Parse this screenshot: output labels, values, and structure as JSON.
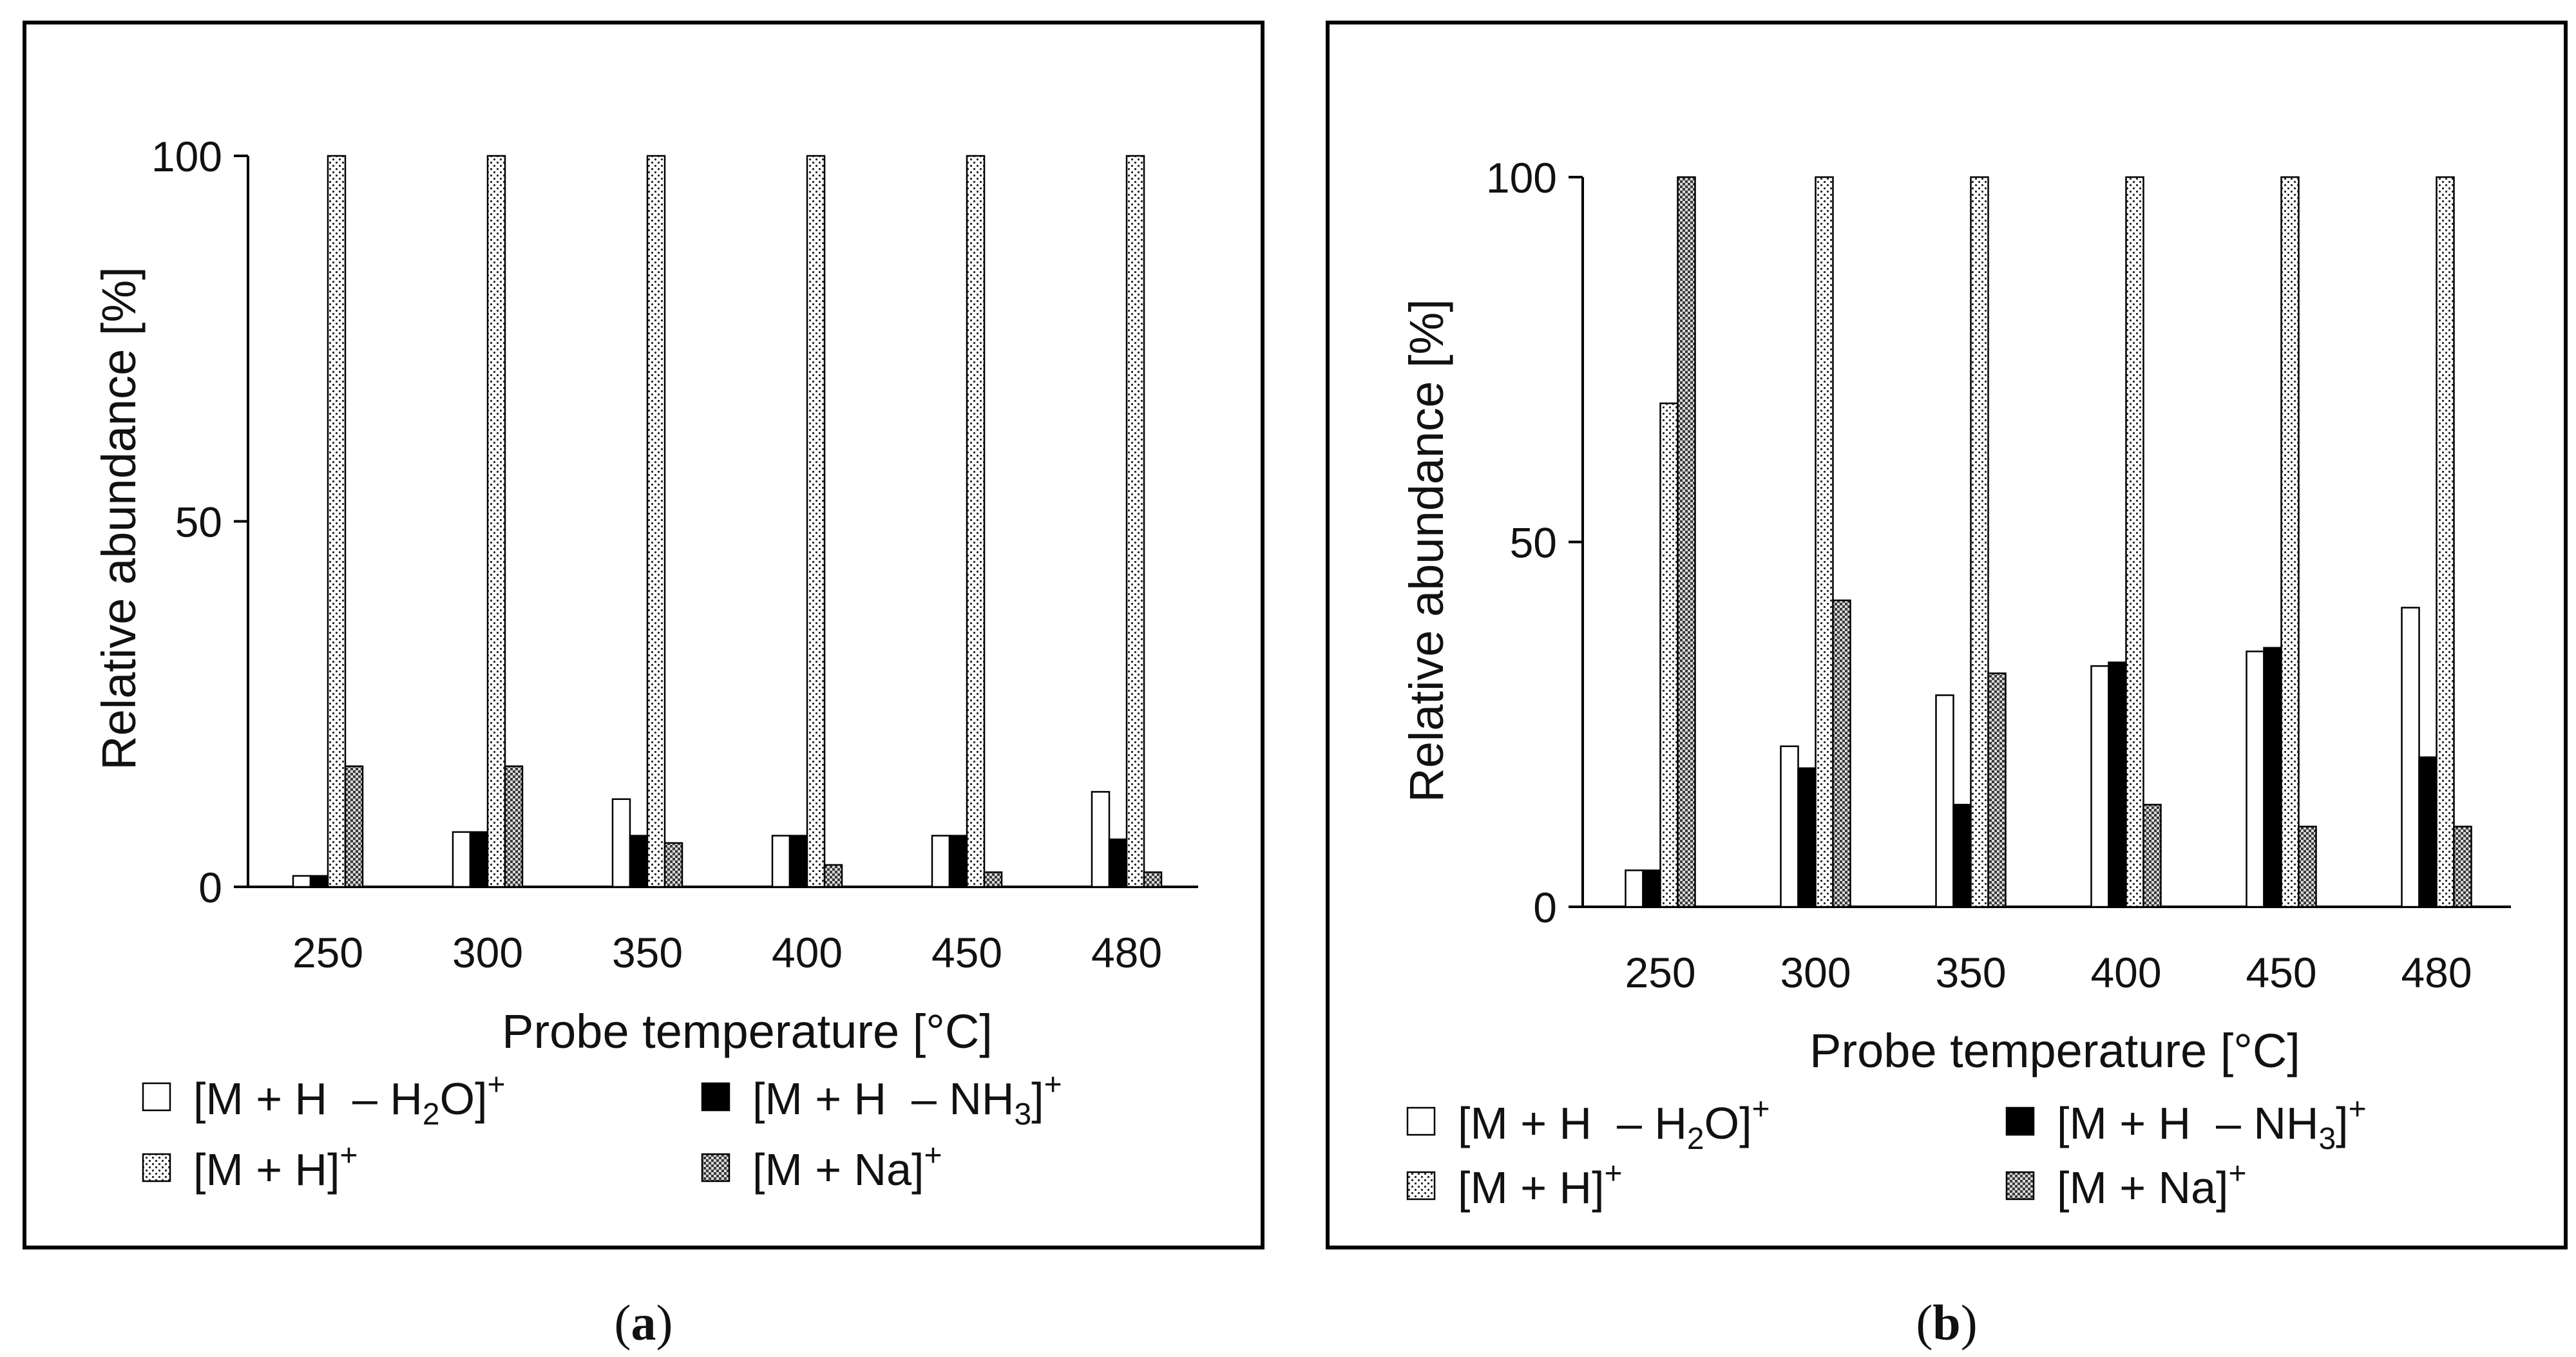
{
  "chart_data": [
    {
      "panel": "a",
      "caption_open": "(",
      "caption_letter": "a",
      "caption_close": ")",
      "type": "bar",
      "title": "",
      "xlabel": "Probe temperature [°C]",
      "ylabel": "Relative abundance  [%]",
      "ylim": [
        0,
        100
      ],
      "yticks": [
        "0",
        "50",
        "100"
      ],
      "categories": [
        "250",
        "300",
        "350",
        "400",
        "450",
        "480"
      ],
      "series": [
        {
          "name": "[M + H  – H2O]+",
          "pattern": "white",
          "values": [
            1.5,
            7.5,
            12,
            7,
            7,
            13
          ]
        },
        {
          "name": "[M + H  – NH3]+",
          "pattern": "black",
          "values": [
            1.5,
            7.5,
            7,
            7,
            7,
            6.5
          ]
        },
        {
          "name": "[M + H]+",
          "pattern": "dotted",
          "values": [
            100,
            100,
            100,
            100,
            100,
            100
          ]
        },
        {
          "name": "[M + Na]+",
          "pattern": "checker",
          "values": [
            16.5,
            16.5,
            6,
            3,
            2,
            2
          ]
        }
      ],
      "legend": [
        {
          "pattern": "white",
          "base": "[M + H  – H",
          "sub": "2",
          "rest": "O]",
          "sup": "+"
        },
        {
          "pattern": "black",
          "base": "[M + H  – NH",
          "sub": "3",
          "rest": "]",
          "sup": "+"
        },
        {
          "pattern": "dotted",
          "base": "[M + H]",
          "sub": "",
          "rest": "",
          "sup": "+"
        },
        {
          "pattern": "checker",
          "base": "[M + Na]",
          "sub": "",
          "rest": "",
          "sup": "+"
        }
      ]
    },
    {
      "panel": "b",
      "caption_open": "(",
      "caption_letter": "b",
      "caption_close": ")",
      "type": "bar",
      "title": "",
      "xlabel": "Probe temperature [°C]",
      "ylabel": "Relative abundance  [%]",
      "ylim": [
        0,
        100
      ],
      "yticks": [
        "0",
        "50",
        "100"
      ],
      "categories": [
        "250",
        "300",
        "350",
        "400",
        "450",
        "480"
      ],
      "series": [
        {
          "name": "[M + H  – H2O]+",
          "pattern": "white",
          "values": [
            5,
            22,
            29,
            33,
            35,
            41
          ]
        },
        {
          "name": "[M + H  – NH3]+",
          "pattern": "black",
          "values": [
            5,
            19,
            14,
            33.5,
            35.5,
            20.5
          ]
        },
        {
          "name": "[M + H]+",
          "pattern": "dotted",
          "values": [
            69,
            100,
            100,
            100,
            100,
            100
          ]
        },
        {
          "name": "[M + Na]+",
          "pattern": "checker",
          "values": [
            100,
            42,
            32,
            14,
            11,
            11
          ]
        }
      ],
      "legend": [
        {
          "pattern": "white",
          "base": "[M + H  – H",
          "sub": "2",
          "rest": "O]",
          "sup": "+"
        },
        {
          "pattern": "black",
          "base": "[M + H  – NH",
          "sub": "3",
          "rest": "]",
          "sup": "+"
        },
        {
          "pattern": "dotted",
          "base": "[M + H]",
          "sub": "",
          "rest": "",
          "sup": "+"
        },
        {
          "pattern": "checker",
          "base": "[M + Na]",
          "sub": "",
          "rest": "",
          "sup": "+"
        }
      ]
    }
  ]
}
